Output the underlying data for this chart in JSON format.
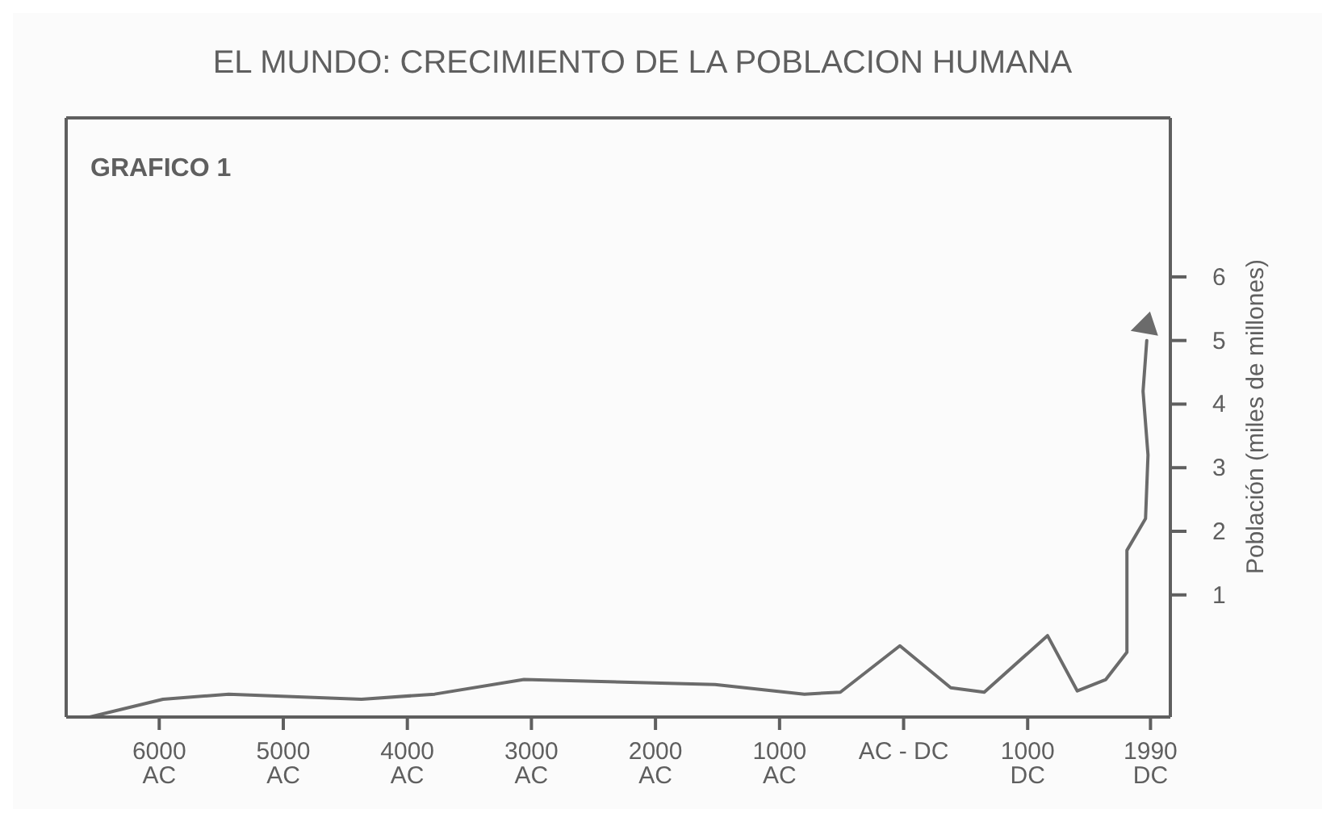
{
  "chart_data": {
    "type": "line",
    "title": "EL MUNDO: CRECIMIENTO DE LA POBLACION HUMANA",
    "ylabel": "Población (miles de millones)",
    "annotations": [
      "GRAFICO 1"
    ],
    "series": [
      {
        "color": "#6b6b6b",
        "x": [
          -6560,
          -5970,
          -5440,
          -4370,
          -3780,
          -3060,
          -1520,
          -800,
          -510,
          -30,
          380,
          650,
          1160,
          1400,
          1630,
          1800,
          1800,
          1950,
          1970,
          1930,
          1960
        ],
        "values": [
          -0.92,
          -0.64,
          -0.56,
          -0.64,
          -0.56,
          -0.33,
          -0.41,
          -0.56,
          -0.53,
          0.2,
          -0.46,
          -0.53,
          0.36,
          -0.51,
          -0.33,
          0.1,
          1.7,
          2.2,
          3.2,
          4.2,
          5.0
        ]
      }
    ],
    "xlim": [
      -6750,
      2150
    ],
    "xticks": [
      {
        "value": -6000,
        "label": "6000\nAC"
      },
      {
        "value": -5000,
        "label": "5000\nAC"
      },
      {
        "value": -4000,
        "label": "4000\nAC"
      },
      {
        "value": -3000,
        "label": "3000\nAC"
      },
      {
        "value": -2000,
        "label": "2000\nAC"
      },
      {
        "value": -1000,
        "label": "1000\nAC"
      },
      {
        "value": 0,
        "label": "AC - DC"
      },
      {
        "value": 1000,
        "label": "1000\nDC"
      },
      {
        "value": 1990,
        "label": "1990\nDC"
      }
    ],
    "ylim": [
      -0.92,
      8.5
    ],
    "yticks": [
      1,
      2,
      3,
      4,
      5,
      6
    ],
    "grid": false,
    "marker": "none",
    "line_style": "solid"
  }
}
